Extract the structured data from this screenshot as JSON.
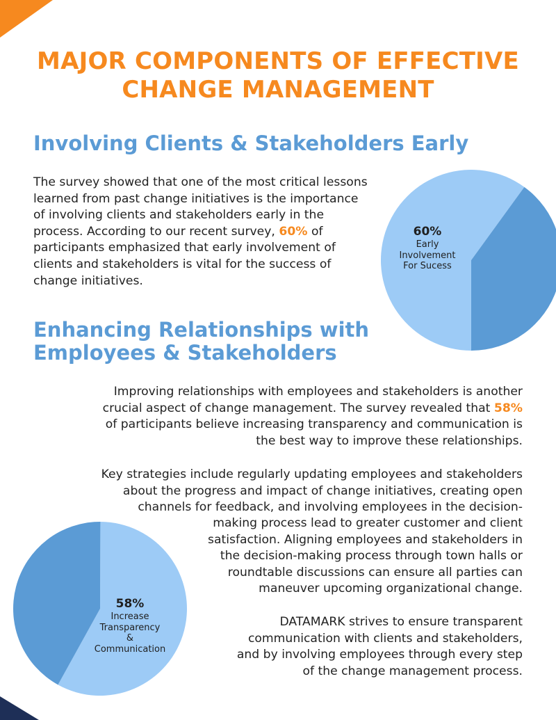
{
  "title": {
    "line1": "MAJOR COMPONENTS OF EFFECTIVE",
    "line2": "CHANGE MANAGEMENT"
  },
  "section1": {
    "heading": "Involving Clients & Stakeholders Early",
    "lines": [
      "The survey showed that one of the most critical lessons",
      "learned from past change initiatives is the importance",
      "of involving clients and stakeholders early in the"
    ],
    "line4_before": "process. According to our recent survey, ",
    "line4_highlight": "60%",
    "line4_after": " of",
    "lines_after": [
      "participants emphasized that early involvement of",
      "clients and stakeholders is vital for the success of",
      "change initiatives."
    ]
  },
  "section2": {
    "heading_line1": "Enhancing Relationships with",
    "heading_line2": "Employees & Stakeholders",
    "p1_line1": "Improving relationships with employees and stakeholders is another",
    "p1_line2_before": "crucial aspect of change management. The survey revealed that ",
    "p1_line2_highlight": "58%",
    "p1_line3": "of participants believe increasing transparency and communication is",
    "p1_line4": "the best way to improve these relationships.",
    "p2_lines_top": [
      "Key strategies include regularly updating employees and stakeholders",
      "about the progress and impact of change initiatives, creating open",
      "channels for feedback, and involving employees in the decision-"
    ],
    "p2_lines_bottom": [
      "making process lead to greater customer and client",
      "satisfaction. Aligning employees and stakeholders in",
      "the decision-making process through town halls or",
      "roundtable discussions can ensure all parties can",
      "maneuver upcoming organizational change."
    ],
    "p3_lines": [
      "DATAMARK strives to ensure transparent",
      "communication with clients and stakeholders,",
      "and by involving employees through every step",
      "of the change management process."
    ]
  },
  "colors": {
    "orange": "#f6891f",
    "heading_blue": "#5b9bd5",
    "pie_light": "#9dcbf6",
    "pie_dark": "#5b9bd5",
    "navy": "#1e2f57"
  },
  "chart_data": [
    {
      "type": "pie",
      "slices": [
        {
          "label": "Early Involvement For Sucess",
          "value": 60
        },
        {
          "value": 40
        }
      ],
      "pct_label": "60%",
      "desc_lines": [
        "Early",
        "Involvement",
        "For Sucess"
      ]
    },
    {
      "type": "pie",
      "slices": [
        {
          "label": "Increase Transparency & Communication",
          "value": 58
        },
        {
          "value": 42
        }
      ],
      "pct_label": "58%",
      "desc_lines": [
        "Increase",
        "Transparency",
        "&",
        "Communication"
      ]
    }
  ]
}
